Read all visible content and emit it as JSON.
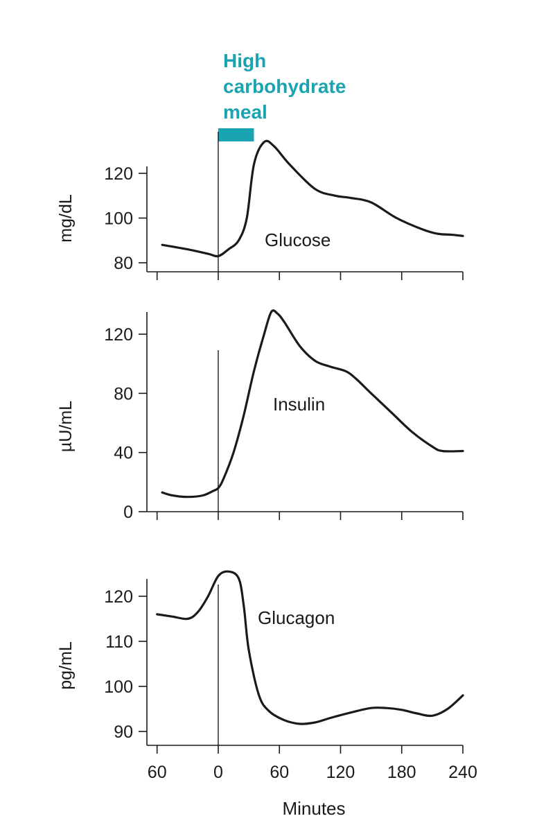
{
  "colors": {
    "meal": "#1aa3b0",
    "ink": "#1a1a1a"
  },
  "meal": {
    "label_lines": [
      "High",
      "carbohydrate",
      "meal"
    ],
    "start": 0,
    "end": 35
  },
  "x_axis": {
    "title": "Minutes",
    "ticks": [
      -60,
      0,
      60,
      120,
      180,
      240
    ],
    "tick_labels": [
      "60",
      "0",
      "60",
      "120",
      "180",
      "240"
    ],
    "range": [
      -70,
      240
    ]
  },
  "chart_data": [
    {
      "type": "line",
      "title": "",
      "ylabel": "mg/dL",
      "series": [
        {
          "name": "Glucose",
          "x": [
            -55,
            -30,
            -10,
            0,
            10,
            20,
            28,
            35,
            45,
            55,
            70,
            95,
            115,
            130,
            150,
            175,
            200,
            215,
            230,
            240
          ],
          "y": [
            88,
            86,
            84,
            83,
            86,
            90,
            100,
            124,
            134,
            132,
            124,
            113,
            110,
            109,
            107,
            100,
            95,
            93,
            92.5,
            92
          ]
        }
      ],
      "ylim": [
        78,
        135
      ],
      "yticks": [
        80,
        100,
        120
      ],
      "ytick_labels": [
        "80",
        "100",
        "120"
      ]
    },
    {
      "type": "line",
      "title": "",
      "ylabel": "µU/mL",
      "series": [
        {
          "name": "Insulin",
          "x": [
            -55,
            -45,
            -30,
            -15,
            -5,
            0,
            5,
            15,
            25,
            35,
            45,
            52,
            58,
            65,
            80,
            95,
            110,
            125,
            135,
            150,
            170,
            190,
            210,
            220,
            240
          ],
          "y": [
            13,
            11,
            10,
            11,
            14,
            16,
            22,
            40,
            65,
            95,
            120,
            135,
            134,
            128,
            112,
            102,
            98,
            95,
            90,
            80,
            67,
            54,
            44,
            41,
            41
          ]
        }
      ],
      "ylim": [
        0,
        140
      ],
      "yticks": [
        0,
        40,
        80,
        120
      ],
      "ytick_labels": [
        "0",
        "40",
        "80",
        "120"
      ]
    },
    {
      "type": "line",
      "title": "",
      "ylabel": "pg/mL",
      "series": [
        {
          "name": "Glucagon",
          "x": [
            -60,
            -45,
            -30,
            -20,
            -10,
            0,
            10,
            20,
            25,
            30,
            40,
            50,
            65,
            80,
            95,
            110,
            130,
            150,
            165,
            180,
            195,
            210,
            225,
            240
          ],
          "y": [
            116,
            115.5,
            115,
            116.5,
            120,
            124.5,
            125.5,
            124,
            118,
            108,
            98,
            94.5,
            92.5,
            91.7,
            92,
            93,
            94.2,
            95.2,
            95.2,
            94.8,
            94,
            93.5,
            95,
            98
          ]
        }
      ],
      "ylim": [
        88,
        126
      ],
      "yticks": [
        90,
        100,
        110,
        120
      ],
      "ytick_labels": [
        "90",
        "100",
        "110",
        "120"
      ]
    }
  ]
}
